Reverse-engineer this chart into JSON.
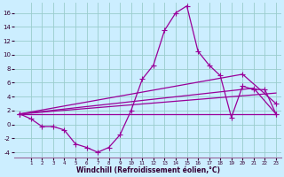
{
  "xlabel": "Windchill (Refroidissement éolien,°C)",
  "background_color": "#cceeff",
  "grid_color": "#99cccc",
  "line_color": "#990099",
  "xlim": [
    -0.5,
    23.5
  ],
  "ylim": [
    -4.8,
    17.5
  ],
  "yticks": [
    -4,
    -2,
    0,
    2,
    4,
    6,
    8,
    10,
    12,
    14,
    16
  ],
  "xticks": [
    1,
    2,
    3,
    4,
    5,
    6,
    7,
    8,
    9,
    10,
    11,
    12,
    13,
    14,
    15,
    16,
    17,
    18,
    19,
    20,
    21,
    22,
    23
  ],
  "line1_x": [
    0,
    1,
    2,
    3,
    4,
    5,
    6,
    7,
    8,
    9,
    10,
    11,
    12,
    13,
    14,
    15,
    16,
    17,
    18,
    19,
    20,
    21,
    22,
    23
  ],
  "line1_y": [
    1.5,
    0.8,
    -0.3,
    -0.3,
    -0.8,
    -2.8,
    -3.3,
    -4.0,
    -3.3,
    -1.5,
    2.0,
    6.5,
    8.5,
    13.5,
    16.0,
    17.0,
    10.5,
    8.5,
    7.0,
    1.0,
    5.5,
    5.0,
    5.0,
    1.5
  ],
  "line2_x": [
    0,
    23
  ],
  "line2_y": [
    1.5,
    1.5
  ],
  "line3_x": [
    0,
    21,
    23
  ],
  "line3_y": [
    1.5,
    5.2,
    1.5
  ],
  "line4_x": [
    0,
    20,
    23
  ],
  "line4_y": [
    1.5,
    7.2,
    3.0
  ],
  "line5_x": [
    0,
    23
  ],
  "line5_y": [
    1.5,
    4.5
  ]
}
